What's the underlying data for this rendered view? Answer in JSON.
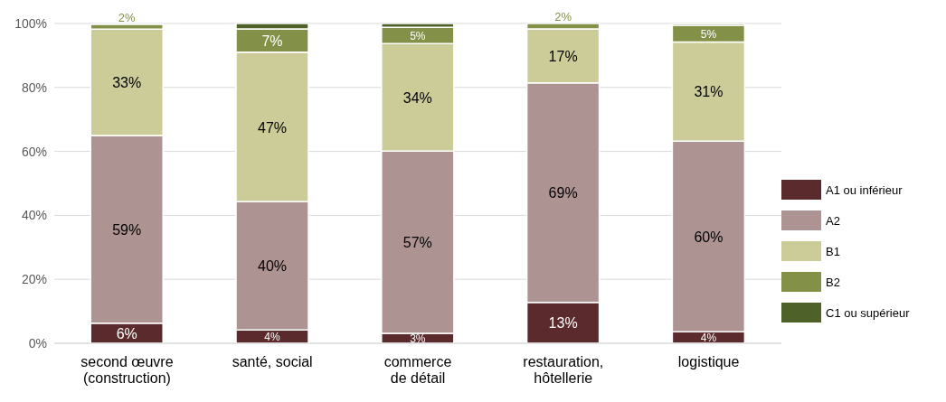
{
  "chart_data": {
    "type": "bar",
    "stacked": true,
    "categories": [
      "second œuvre\n(construction)",
      "santé, social",
      "commerce\nde détail",
      "restauration,\nhôtellerie",
      "logistique"
    ],
    "series": [
      {
        "name": "A1 ou inférieur",
        "color": "#5a2a2c",
        "values": [
          6.3,
          4.2,
          3.1,
          12.8,
          3.6
        ],
        "value_labels": [
          "6%",
          "4%",
          "3%",
          "13%",
          "4%"
        ]
      },
      {
        "name": "A2",
        "color": "#ad9493",
        "values": [
          58.7,
          40.1,
          57.0,
          68.6,
          59.6
        ],
        "value_labels": [
          "59%",
          "40%",
          "57%",
          "69%",
          "60%"
        ]
      },
      {
        "name": "B1",
        "color": "#cccc99",
        "values": [
          33.2,
          46.7,
          33.6,
          16.9,
          31.0
        ],
        "value_labels": [
          "33%",
          "47%",
          "34%",
          "17%",
          "31%"
        ]
      },
      {
        "name": "B2",
        "color": "#839048",
        "values": [
          1.5,
          7.3,
          5.1,
          1.7,
          5.2
        ],
        "value_labels": [
          "2%",
          "7%",
          "5%",
          "2%",
          "5%"
        ]
      },
      {
        "name": "C1 ou supérieur",
        "color": "#4e6128",
        "values": [
          0,
          1.7,
          1.2,
          0,
          0.5
        ],
        "value_labels": [
          null,
          null,
          null,
          null,
          null
        ]
      }
    ],
    "ylim": [
      0,
      100
    ],
    "yticks": [
      {
        "value": 0,
        "label": "0%"
      },
      {
        "value": 20,
        "label": "20%"
      },
      {
        "value": 40,
        "label": "40%"
      },
      {
        "value": 60,
        "label": "60%"
      },
      {
        "value": 80,
        "label": "80%"
      },
      {
        "value": 100,
        "label": "100%"
      }
    ],
    "grid": "y",
    "legend": "right"
  }
}
